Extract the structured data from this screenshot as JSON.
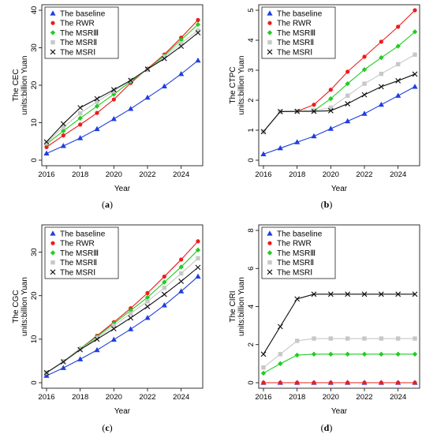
{
  "series_styles": [
    {
      "key": "baseline",
      "color": "#1f3ee0",
      "marker": "triangle"
    },
    {
      "key": "rwr",
      "color": "#ee1c1c",
      "marker": "circle"
    },
    {
      "key": "msr3",
      "color": "#22cc22",
      "marker": "diamond"
    },
    {
      "key": "msr2",
      "color": "#c8c8c8",
      "marker": "square"
    },
    {
      "key": "msr1",
      "color": "#111111",
      "marker": "cross"
    }
  ],
  "chart_data": [
    {
      "type": "line",
      "panel_label": "(a)",
      "xlabel": "Year",
      "ylabel": [
        "The CEC",
        "units:billion Yuan"
      ],
      "x": [
        2016,
        2017,
        2018,
        2019,
        2020,
        2021,
        2022,
        2023,
        2024,
        2025
      ],
      "xticks": [
        2016,
        2018,
        2020,
        2022,
        2024
      ],
      "xlim": [
        2016,
        2025
      ],
      "ylim": [
        0,
        40
      ],
      "yticks": [
        0,
        10,
        20,
        30,
        40
      ],
      "legend_position": "top-left",
      "series": [
        {
          "name": "The baseline",
          "values": [
            1.8,
            3.8,
            5.9,
            8.3,
            11.0,
            13.7,
            16.7,
            19.7,
            23.0,
            26.6
          ]
        },
        {
          "name": "The RWR",
          "values": [
            3.5,
            6.6,
            9.5,
            12.6,
            16.2,
            20.6,
            24.4,
            28.2,
            32.7,
            37.4
          ]
        },
        {
          "name": "The MSRⅢ",
          "values": [
            4.3,
            7.8,
            11.2,
            14.4,
            17.6,
            21.0,
            24.2,
            27.9,
            32.1,
            36.2
          ]
        },
        {
          "name": "The MSRⅡ",
          "values": [
            4.6,
            8.8,
            12.5,
            15.6,
            18.4,
            21.3,
            24.1,
            27.6,
            31.2,
            34.6
          ]
        },
        {
          "name": "The MSRⅠ",
          "values": [
            4.9,
            9.7,
            14.0,
            16.4,
            18.8,
            21.3,
            24.3,
            27.1,
            30.4,
            34.0
          ]
        }
      ]
    },
    {
      "type": "line",
      "panel_label": "(b)",
      "xlabel": "Year",
      "ylabel": [
        "The CTPC",
        "units:billion Yuan"
      ],
      "x": [
        2016,
        2017,
        2018,
        2019,
        2020,
        2021,
        2022,
        2023,
        2024,
        2025
      ],
      "xticks": [
        2016,
        2018,
        2020,
        2022,
        2024
      ],
      "xlim": [
        2016,
        2025
      ],
      "ylim": [
        0,
        5
      ],
      "yticks": [
        0,
        1,
        2,
        3,
        4,
        5
      ],
      "legend_position": "top-left",
      "series": [
        {
          "name": "The baseline",
          "values": [
            0.2,
            0.4,
            0.6,
            0.8,
            1.05,
            1.3,
            1.55,
            1.85,
            2.15,
            2.45
          ]
        },
        {
          "name": "The RWR",
          "values": [
            0.95,
            1.62,
            1.63,
            1.85,
            2.35,
            2.95,
            3.45,
            3.95,
            4.45,
            5.0
          ]
        },
        {
          "name": "The MSRⅢ",
          "values": [
            0.95,
            1.62,
            1.63,
            1.65,
            2.05,
            2.55,
            3.02,
            3.42,
            3.8,
            4.28
          ]
        },
        {
          "name": "The MSRⅡ",
          "values": [
            0.95,
            1.62,
            1.63,
            1.65,
            1.75,
            2.15,
            2.55,
            2.88,
            3.2,
            3.52
          ]
        },
        {
          "name": "The MSRⅠ",
          "values": [
            0.95,
            1.62,
            1.63,
            1.63,
            1.65,
            1.88,
            2.18,
            2.45,
            2.65,
            2.87
          ]
        }
      ]
    },
    {
      "type": "line",
      "panel_label": "(c)",
      "xlabel": "Year",
      "ylabel": [
        "The CGC",
        "units:billion Yuan"
      ],
      "x": [
        2016,
        2017,
        2018,
        2019,
        2020,
        2021,
        2022,
        2023,
        2024,
        2025
      ],
      "xticks": [
        2016,
        2018,
        2020,
        2022,
        2024
      ],
      "xlim": [
        2016,
        2025
      ],
      "ylim": [
        0,
        35
      ],
      "yticks": [
        0,
        10,
        20,
        30
      ],
      "legend_position": "top-left",
      "series": [
        {
          "name": "The baseline",
          "values": [
            1.6,
            3.4,
            5.4,
            7.5,
            9.9,
            12.3,
            14.9,
            17.8,
            21.0,
            24.4
          ]
        },
        {
          "name": "The RWR",
          "values": [
            2.3,
            4.9,
            7.8,
            10.8,
            13.9,
            17.1,
            20.6,
            24.4,
            28.3,
            32.5
          ]
        },
        {
          "name": "The MSRⅢ",
          "values": [
            2.3,
            4.9,
            7.8,
            10.6,
            13.6,
            16.6,
            19.6,
            23.1,
            26.6,
            30.5
          ]
        },
        {
          "name": "The MSRⅡ",
          "values": [
            2.3,
            4.9,
            7.7,
            10.3,
            13.1,
            15.9,
            18.7,
            21.8,
            25.1,
            28.6
          ]
        },
        {
          "name": "The MSRⅠ",
          "values": [
            2.3,
            4.8,
            7.6,
            10.0,
            12.4,
            14.9,
            17.5,
            20.3,
            23.3,
            26.5
          ]
        }
      ]
    },
    {
      "type": "line",
      "panel_label": "(d)",
      "xlabel": "Year",
      "ylabel": [
        "The CIRI",
        "units:billion Yuan"
      ],
      "x": [
        2016,
        2017,
        2018,
        2019,
        2020,
        2021,
        2022,
        2023,
        2024,
        2025
      ],
      "xticks": [
        2016,
        2018,
        2020,
        2022,
        2024
      ],
      "xlim": [
        2016,
        2025
      ],
      "ylim": [
        0,
        8
      ],
      "yticks": [
        0,
        2,
        4,
        6,
        8
      ],
      "legend_position": "top-left",
      "series": [
        {
          "name": "The baseline",
          "values": [
            0,
            0,
            0,
            0,
            0,
            0,
            0,
            0,
            0,
            0
          ]
        },
        {
          "name": "The RWR",
          "values": [
            0,
            0,
            0,
            0,
            0,
            0,
            0,
            0,
            0,
            0
          ]
        },
        {
          "name": "The MSRⅢ",
          "values": [
            0.5,
            1.0,
            1.45,
            1.5,
            1.5,
            1.5,
            1.5,
            1.5,
            1.5,
            1.5
          ]
        },
        {
          "name": "The MSRⅡ",
          "values": [
            0.8,
            1.5,
            2.2,
            2.32,
            2.32,
            2.32,
            2.32,
            2.32,
            2.32,
            2.32
          ]
        },
        {
          "name": "The MSRⅠ",
          "values": [
            1.5,
            2.95,
            4.4,
            4.65,
            4.65,
            4.65,
            4.65,
            4.65,
            4.65,
            4.65
          ]
        }
      ]
    }
  ]
}
